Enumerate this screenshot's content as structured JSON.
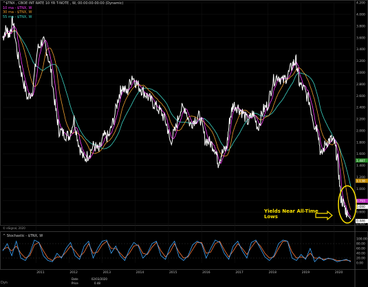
{
  "window": {
    "corner_label": "Dyn",
    "copyright": "© eSignal, 2020"
  },
  "legend": {
    "title": "^$TNX , CBOE INT RATE 10 YR T-NOTE , W, 00:00:00-00:00 (Dynamic)",
    "items": [
      {
        "label": "10 ma - $TNX, W",
        "color": "#ff3bff"
      },
      {
        "label": "30 ma - $TNX, W",
        "color": "#f0a030"
      },
      {
        "label": "55 ma - $TNX, W",
        "color": "#3cd7c7"
      }
    ]
  },
  "subpane": {
    "title": "^ Stochastic - $TNX, W",
    "k_color": "#3da8ff",
    "d_color": "#ff7a3c",
    "axis": [
      "100.00",
      "80.00",
      "60.00",
      "40.00",
      "20.00",
      "0.00"
    ]
  },
  "annotation": {
    "text_line1": "Yields Near All-Time",
    "text_line2": "Lows",
    "color": "#ffe400"
  },
  "data_window": {
    "date_label": "Date",
    "date_value": "02/03/2020",
    "price_label": "Price",
    "price_value": "0.48"
  },
  "chart_data": {
    "type": "line",
    "title": "^$TNX , CBOE INT RATE 10 YR T-NOTE , W, 00:00:00-00:00 (Dynamic)",
    "ylim": [
      0.4,
      4.2
    ],
    "y_ticks": [
      "4.200",
      "4.000",
      "3.800",
      "3.600",
      "3.400",
      "3.200",
      "3.000",
      "2.800",
      "2.600",
      "2.400",
      "2.200",
      "2.000",
      "1.800",
      "1.600",
      "1.400",
      "1.200",
      "1.000",
      "0.800",
      "0.600",
      "0.400"
    ],
    "x_ticks": [
      "2011",
      "2012",
      "2013",
      "2014",
      "2015",
      "2016",
      "2017",
      "2018",
      "2019",
      "2020"
    ],
    "price_markers": [
      {
        "label": "1.487",
        "value": 1.487,
        "color": "#2a8a2a"
      },
      {
        "label": "1.138",
        "value": 1.138,
        "color": "#c08a00"
      },
      {
        "label": "0.793",
        "value": 0.793,
        "color": "#c030c0"
      },
      {
        "label": "0.690",
        "value": 0.69,
        "color": "#ffffff"
      },
      {
        "label": "0.446",
        "value": 0.446,
        "color": "#ffffff"
      }
    ],
    "series": [
      {
        "name": "$TNX",
        "color": "#ffffff",
        "x": [
          2010.0,
          2010.1,
          2010.2,
          2010.3,
          2010.45,
          2010.6,
          2010.75,
          2010.9,
          2011.05,
          2011.2,
          2011.3,
          2011.45,
          2011.6,
          2011.7,
          2011.85,
          2012.0,
          2012.15,
          2012.3,
          2012.45,
          2012.6,
          2012.75,
          2012.9,
          2013.05,
          2013.2,
          2013.35,
          2013.5,
          2013.6,
          2013.75,
          2013.9,
          2014.05,
          2014.2,
          2014.35,
          2014.5,
          2014.65,
          2014.8,
          2014.95,
          2015.05,
          2015.2,
          2015.35,
          2015.5,
          2015.65,
          2015.8,
          2015.95,
          2016.1,
          2016.25,
          2016.4,
          2016.5,
          2016.6,
          2016.75,
          2016.85,
          2016.95,
          2017.1,
          2017.25,
          2017.4,
          2017.55,
          2017.7,
          2017.85,
          2018.0,
          2018.15,
          2018.3,
          2018.45,
          2018.6,
          2018.75,
          2018.85,
          2018.95,
          2019.1,
          2019.25,
          2019.4,
          2019.5,
          2019.6,
          2019.75,
          2019.9,
          2020.0,
          2020.1,
          2020.2,
          2020.3,
          2020.4,
          2020.5
        ],
        "y": [
          3.6,
          3.75,
          3.65,
          3.9,
          3.3,
          2.9,
          2.55,
          2.7,
          3.4,
          3.55,
          3.45,
          3.05,
          2.35,
          2.0,
          1.95,
          1.9,
          2.2,
          1.75,
          1.5,
          1.6,
          1.75,
          1.65,
          1.9,
          1.9,
          2.2,
          2.6,
          2.75,
          2.65,
          2.95,
          2.8,
          2.7,
          2.6,
          2.5,
          2.4,
          2.3,
          2.1,
          1.8,
          2.0,
          2.35,
          2.4,
          2.1,
          2.2,
          2.25,
          1.85,
          1.8,
          1.7,
          1.45,
          1.6,
          1.7,
          2.2,
          2.45,
          2.4,
          2.3,
          2.15,
          2.3,
          2.05,
          2.35,
          2.45,
          2.85,
          2.95,
          2.85,
          2.95,
          3.15,
          3.2,
          2.8,
          2.7,
          2.5,
          2.1,
          2.05,
          1.55,
          1.8,
          1.85,
          1.8,
          1.5,
          0.85,
          0.7,
          0.55,
          0.48
        ]
      }
    ],
    "stochastic": {
      "k": [
        50,
        80,
        30,
        90,
        20,
        10,
        40,
        95,
        85,
        30,
        10,
        5,
        40,
        20,
        60,
        85,
        30,
        15,
        70,
        90,
        20,
        60,
        90,
        95,
        40,
        70,
        30,
        10,
        55,
        85,
        70,
        20,
        40,
        80,
        90,
        30,
        15,
        65,
        90,
        25,
        10,
        30,
        75,
        90,
        80,
        20,
        60,
        95,
        85,
        40,
        15,
        70,
        90,
        50,
        20,
        85,
        95,
        60,
        25,
        10,
        30,
        80,
        95,
        90,
        20,
        10,
        35,
        15,
        60,
        5,
        25,
        10,
        20,
        15,
        5,
        10,
        15,
        5
      ],
      "d": [
        55,
        65,
        50,
        70,
        40,
        20,
        30,
        75,
        85,
        50,
        20,
        10,
        25,
        25,
        45,
        70,
        50,
        25,
        45,
        80,
        40,
        45,
        75,
        90,
        60,
        60,
        40,
        20,
        40,
        70,
        75,
        40,
        35,
        65,
        85,
        50,
        25,
        45,
        80,
        45,
        20,
        25,
        55,
        85,
        85,
        40,
        45,
        80,
        90,
        55,
        25,
        50,
        80,
        60,
        35,
        65,
        90,
        70,
        40,
        20,
        25,
        60,
        90,
        90,
        45,
        20,
        25,
        20,
        40,
        20,
        20,
        15,
        18,
        16,
        10,
        10,
        12,
        8
      ]
    }
  }
}
